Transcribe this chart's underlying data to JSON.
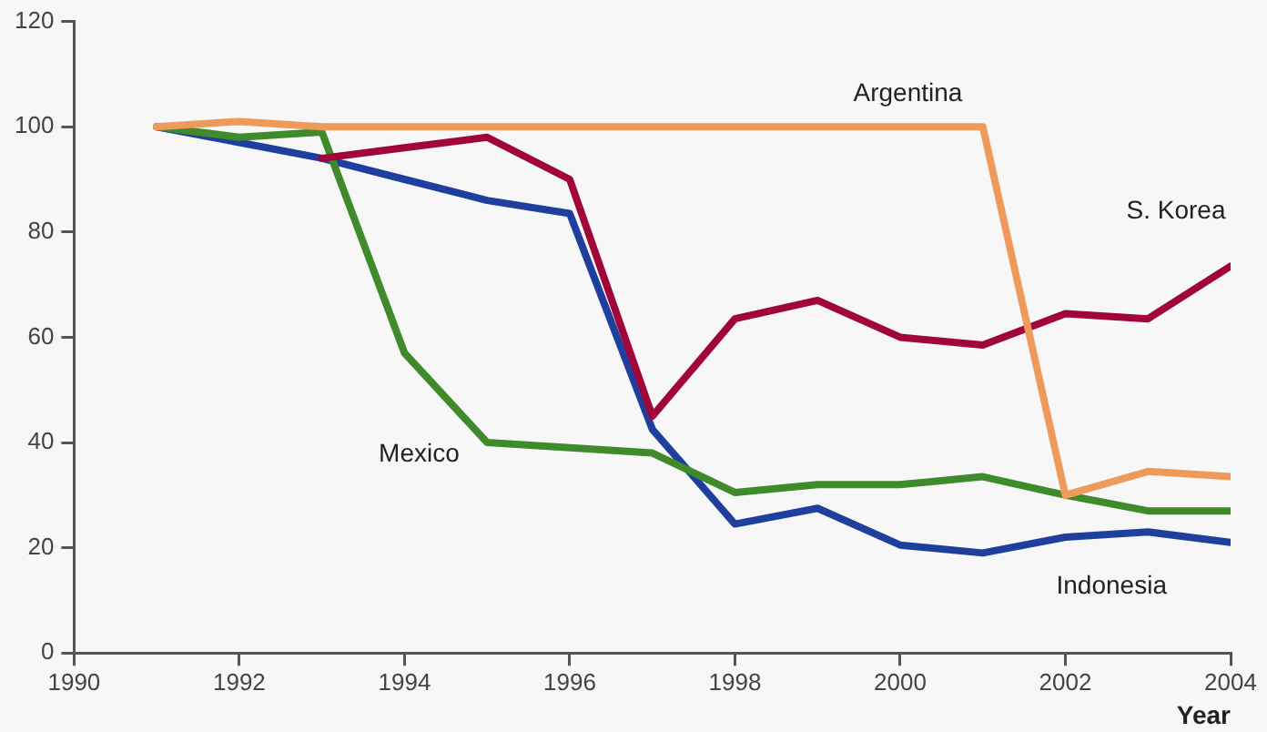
{
  "chart_data": {
    "type": "line",
    "xlabel": "Year",
    "x": [
      1991,
      1992,
      1993,
      1994,
      1995,
      1996,
      1997,
      1998,
      1999,
      2000,
      2001,
      2002,
      2003,
      2004
    ],
    "series": [
      {
        "name": "Argentina",
        "color": "#ee9a5c",
        "values": [
          100,
          101,
          100,
          100,
          100,
          100,
          100,
          100,
          100,
          100,
          100,
          30,
          34.5,
          33.5
        ]
      },
      {
        "name": "S. Korea",
        "color": "#a0063a",
        "values": [
          null,
          null,
          94,
          96,
          98,
          90,
          45,
          63.5,
          67,
          60,
          58.5,
          64.5,
          63.5,
          73.5
        ]
      },
      {
        "name": "Mexico",
        "color": "#3f8a2a",
        "values": [
          100,
          98,
          99,
          57,
          40,
          39,
          38,
          30.5,
          32,
          32,
          33.5,
          30,
          27,
          27
        ]
      },
      {
        "name": "Indonesia",
        "color": "#1f3f9e",
        "values": [
          100,
          97,
          94,
          90,
          86,
          83.5,
          42.5,
          24.5,
          27.5,
          20.5,
          19,
          22,
          23,
          21
        ]
      }
    ],
    "xlim": [
      1990,
      2004
    ],
    "xticks": [
      1990,
      1992,
      1994,
      1996,
      1998,
      2000,
      2002,
      2004
    ],
    "ylim": [
      0,
      120
    ],
    "yticks": [
      0,
      20,
      40,
      60,
      80,
      100,
      120
    ],
    "grid": false,
    "legend": false,
    "marker": "none",
    "line_style": "solid"
  }
}
